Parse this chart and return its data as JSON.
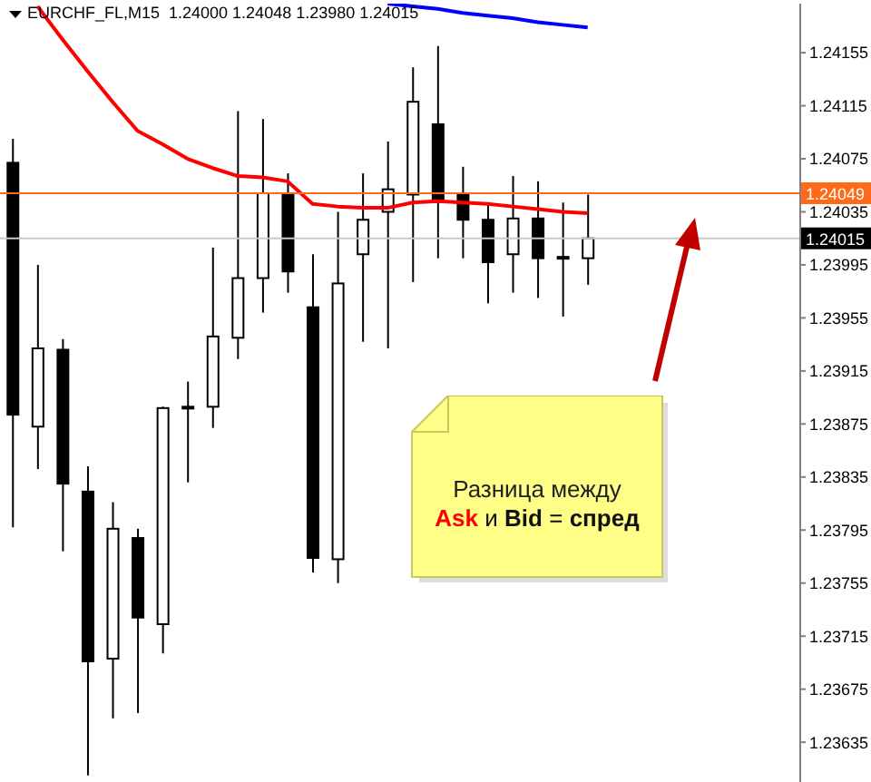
{
  "chart_data": {
    "type": "candlestick",
    "title": "EURCHF_FL,M15  1.24000 1.24048 1.23980 1.24015",
    "categories": [
      null,
      null,
      null,
      null,
      null,
      null,
      null,
      null,
      null,
      null,
      null,
      null,
      null,
      null,
      null,
      null,
      null,
      null,
      null,
      null,
      null,
      null,
      null,
      null,
      null,
      null,
      null,
      null,
      null,
      null,
      null,
      null
    ],
    "ohlc": [
      [
        1.24072,
        1.2409,
        1.23797,
        1.23882
      ],
      [
        1.23873,
        1.23995,
        1.23841,
        1.23932
      ],
      [
        1.23931,
        1.23939,
        1.23779,
        1.2383
      ],
      [
        1.23824,
        1.23843,
        1.2361,
        1.23696
      ],
      [
        1.23698,
        1.23816,
        1.23653,
        1.23796
      ],
      [
        1.23789,
        1.23796,
        1.23657,
        1.23729
      ],
      [
        1.23724,
        1.23888,
        1.23702,
        1.23887
      ],
      [
        1.23887,
        1.23907,
        1.23831,
        1.23888
      ],
      [
        1.23888,
        1.24008,
        1.23872,
        1.23941
      ],
      [
        1.2394,
        1.24111,
        1.23924,
        1.23985
      ],
      [
        1.23985,
        1.24105,
        1.23959,
        1.24049
      ],
      [
        1.24049,
        1.24064,
        1.23974,
        1.2399
      ],
      [
        1.23963,
        1.24003,
        1.23763,
        1.23774
      ],
      [
        1.23773,
        1.24035,
        1.23755,
        1.23981
      ],
      [
        1.24003,
        1.24064,
        1.23937,
        1.24029
      ],
      [
        1.24035,
        1.24088,
        1.23932,
        1.24052
      ],
      [
        1.24048,
        1.24144,
        1.23982,
        1.24118
      ],
      [
        1.24101,
        1.2416,
        1.24,
        1.24043
      ],
      [
        1.24049,
        1.24069,
        1.24,
        1.24029
      ],
      [
        1.24029,
        1.24042,
        1.23966,
        1.23997
      ],
      [
        1.24003,
        1.24062,
        1.23974,
        1.2403
      ],
      [
        1.2403,
        1.24058,
        1.2397,
        1.24
      ],
      [
        1.24001,
        1.24042,
        1.23956,
        1.24001
      ],
      [
        1.24,
        1.24048,
        1.2398,
        1.24015
      ],
      null,
      null,
      null,
      null,
      null,
      null,
      null,
      null
    ],
    "series": [
      {
        "type": "line",
        "color": "#ff0000",
        "values": [
          null,
          1.2419,
          1.24165,
          1.24141,
          1.24118,
          1.24096,
          1.24086,
          1.24075,
          1.24068,
          1.24062,
          1.24061,
          1.24058,
          1.24041,
          1.24039,
          1.24038,
          1.24038,
          1.24042,
          1.24043,
          1.24042,
          1.24041,
          1.24039,
          1.24037,
          1.24035,
          1.24034,
          null,
          null,
          null,
          null,
          null,
          null,
          null,
          null
        ]
      },
      {
        "type": "line",
        "color": "#0000ff",
        "values": [
          null,
          null,
          null,
          null,
          null,
          null,
          null,
          null,
          null,
          null,
          null,
          null,
          null,
          null,
          null,
          1.24192,
          1.2419,
          1.24188,
          1.24185,
          1.24183,
          1.24181,
          1.24178,
          1.24176,
          1.24174,
          null,
          null,
          null,
          null,
          null,
          null,
          null,
          null
        ]
      }
    ],
    "ylim": [
      1.23605,
      1.24192
    ],
    "yticks": [
      1.24155,
      1.24115,
      1.24075,
      1.24035,
      1.23995,
      1.23955,
      1.23915,
      1.23875,
      1.23835,
      1.23795,
      1.23755,
      1.23715,
      1.23675,
      1.23635
    ],
    "ref_lines": [
      {
        "axis": "y",
        "value": 1.24049,
        "label": "1.24049",
        "color": "#ff6a1a"
      },
      {
        "axis": "y",
        "value": 1.24015,
        "label": "1.24015",
        "color": "#c8c8c8"
      }
    ],
    "annotations": [
      "Разница между Ask и Bid = спред"
    ],
    "tick_labels": "y"
  }
}
